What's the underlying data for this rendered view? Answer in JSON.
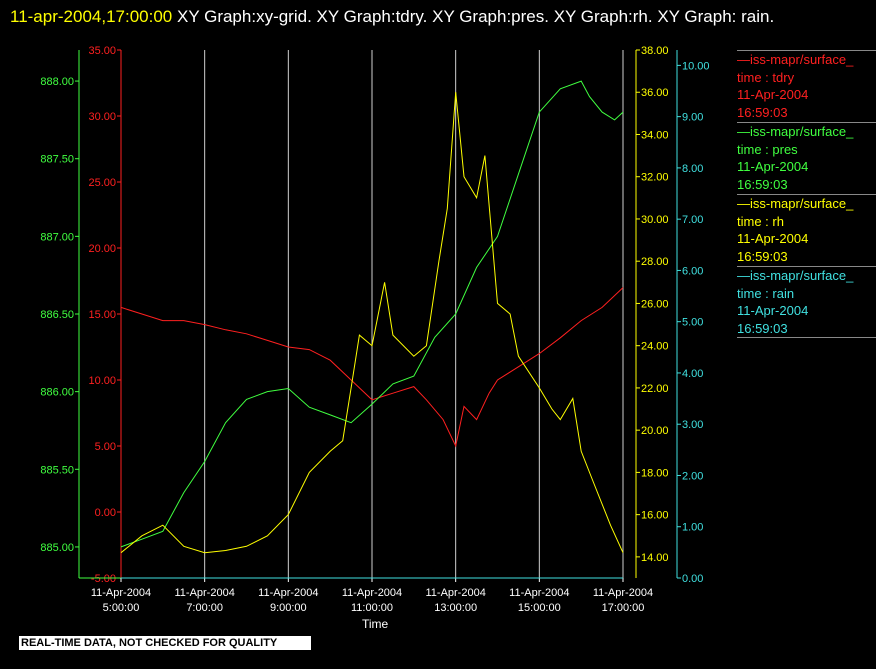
{
  "title": {
    "date": "11-apr-2004,17:00:00",
    "rest": "XY Graph:xy-grid.  XY Graph:tdry.  XY Graph:pres.  XY Graph:rh.  XY Graph: rain."
  },
  "legend": [
    {
      "line": "—iss-mapr/surface_",
      "var": "time : tdry",
      "date": "11-Apr-2004",
      "time": "16:59:03",
      "color": "#ff2020"
    },
    {
      "line": "—iss-mapr/surface_",
      "var": "time : pres",
      "date": "11-Apr-2004",
      "time": "16:59:03",
      "color": "#40ff40"
    },
    {
      "line": "—iss-mapr/surface_",
      "var": "time : rh",
      "date": "11-Apr-2004",
      "time": "16:59:03",
      "color": "#ffff00"
    },
    {
      "line": "—iss-mapr/surface_",
      "var": "time : rain",
      "date": "11-Apr-2004",
      "time": "16:59:03",
      "color": "#40e0e0"
    }
  ],
  "note": "REAL-TIME DATA, NOT CHECKED FOR QUALITY",
  "chart_data": {
    "type": "line",
    "xlabel": "Time",
    "x_ticks": [
      {
        "date": "11-Apr-2004",
        "time": "5:00:00",
        "hour": 5
      },
      {
        "date": "11-Apr-2004",
        "time": "7:00:00",
        "hour": 7
      },
      {
        "date": "11-Apr-2004",
        "time": "9:00:00",
        "hour": 9
      },
      {
        "date": "11-Apr-2004",
        "time": "11:00:00",
        "hour": 11
      },
      {
        "date": "11-Apr-2004",
        "time": "13:00:00",
        "hour": 13
      },
      {
        "date": "11-Apr-2004",
        "time": "15:00:00",
        "hour": 15
      },
      {
        "date": "11-Apr-2004",
        "time": "17:00:00",
        "hour": 17
      }
    ],
    "xlim": [
      5,
      17
    ],
    "axes": [
      {
        "id": "pres",
        "color": "#40ff40",
        "lim": [
          884.8,
          888.2
        ],
        "ticks": [
          "885.00",
          "885.50",
          "886.00",
          "886.50",
          "887.00",
          "887.50",
          "888.00"
        ],
        "tick_values": [
          885,
          885.5,
          886,
          886.5,
          887,
          887.5,
          888
        ]
      },
      {
        "id": "tdry",
        "color": "#ff2020",
        "lim": [
          -5,
          35
        ],
        "ticks": [
          "-5.00",
          "0.00",
          "5.00",
          "10.00",
          "15.00",
          "20.00",
          "25.00",
          "30.00",
          "35.00"
        ],
        "tick_values": [
          -5,
          0,
          5,
          10,
          15,
          20,
          25,
          30,
          35
        ]
      },
      {
        "id": "rh",
        "color": "#ffff00",
        "lim": [
          13,
          38
        ],
        "ticks": [
          "14.00",
          "16.00",
          "18.00",
          "20.00",
          "22.00",
          "24.00",
          "26.00",
          "28.00",
          "30.00",
          "32.00",
          "34.00",
          "36.00",
          "38.00"
        ],
        "tick_values": [
          14,
          16,
          18,
          20,
          22,
          24,
          26,
          28,
          30,
          32,
          34,
          36,
          38
        ]
      },
      {
        "id": "rain",
        "color": "#40e0e0",
        "lim": [
          0,
          10.3
        ],
        "ticks": [
          "0.00",
          "1.00",
          "2.00",
          "3.00",
          "4.00",
          "5.00",
          "6.00",
          "7.00",
          "8.00",
          "9.00",
          "10.00"
        ],
        "tick_values": [
          0,
          1,
          2,
          3,
          4,
          5,
          6,
          7,
          8,
          9,
          10
        ]
      }
    ],
    "series": [
      {
        "axis": "tdry",
        "color": "#ff2020",
        "x": [
          5,
          5.5,
          6,
          6.5,
          7,
          7.5,
          8,
          8.5,
          9,
          9.5,
          10,
          10.5,
          11,
          11.5,
          12,
          12.3,
          12.7,
          13,
          13.2,
          13.5,
          13.8,
          14,
          14.5,
          15,
          15.5,
          16,
          16.5,
          17
        ],
        "y": [
          15.5,
          15,
          14.5,
          14.5,
          14.2,
          13.8,
          13.5,
          13,
          12.5,
          12.3,
          11.5,
          10,
          8.5,
          9,
          9.5,
          8.5,
          7,
          5,
          8,
          7,
          9,
          10,
          11,
          12,
          13.2,
          14.5,
          15.5,
          17
        ]
      },
      {
        "axis": "pres",
        "color": "#40ff40",
        "x": [
          5,
          5.5,
          6,
          6.5,
          7,
          7.5,
          8,
          8.5,
          9,
          9.5,
          10,
          10.5,
          11,
          11.5,
          12,
          12.5,
          13,
          13.5,
          14,
          14.5,
          15,
          15.5,
          16,
          16.2,
          16.5,
          16.8,
          17
        ],
        "y": [
          885.0,
          885.05,
          885.1,
          885.35,
          885.55,
          885.8,
          885.95,
          886.0,
          886.02,
          885.9,
          885.85,
          885.8,
          885.92,
          886.05,
          886.1,
          886.35,
          886.5,
          886.8,
          887.0,
          887.4,
          887.8,
          887.95,
          888.0,
          887.9,
          887.8,
          887.75,
          887.8
        ]
      },
      {
        "axis": "rh",
        "color": "#ffff00",
        "x": [
          5,
          5.5,
          6,
          6.5,
          7,
          7.5,
          8,
          8.5,
          9,
          9.5,
          10,
          10.3,
          10.5,
          10.7,
          11,
          11.3,
          11.5,
          12,
          12.3,
          12.6,
          12.8,
          13,
          13.2,
          13.5,
          13.7,
          14,
          14.3,
          14.5,
          15,
          15.3,
          15.5,
          15.8,
          16,
          16.3,
          16.7,
          17
        ],
        "y": [
          14.2,
          15.0,
          15.5,
          14.5,
          14.2,
          14.3,
          14.5,
          15.0,
          16.0,
          18.0,
          19.0,
          19.5,
          22.0,
          24.5,
          24.0,
          27.0,
          24.5,
          23.5,
          24.0,
          28.0,
          30.5,
          36.0,
          32.0,
          31.0,
          33.0,
          26.0,
          25.5,
          23.5,
          22.0,
          21.0,
          20.5,
          21.5,
          19.0,
          17.5,
          15.5,
          14.2
        ]
      },
      {
        "axis": "rain",
        "color": "#40e0e0",
        "x": [
          5,
          17
        ],
        "y": [
          0.0,
          0.0
        ]
      }
    ]
  }
}
